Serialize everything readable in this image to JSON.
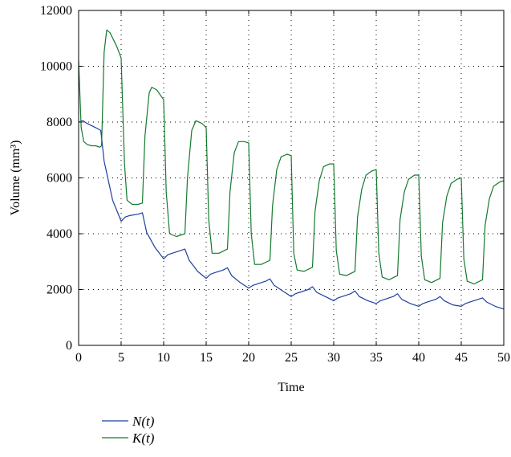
{
  "chart_data": {
    "type": "line",
    "title": "",
    "xlabel": "Time",
    "ylabel": "Volume (mm³)",
    "xlim": [
      0,
      50
    ],
    "ylim": [
      0,
      12000
    ],
    "xticks": [
      0,
      5,
      10,
      15,
      20,
      25,
      30,
      35,
      40,
      45,
      50
    ],
    "yticks": [
      0,
      2000,
      4000,
      6000,
      8000,
      10000,
      12000
    ],
    "grid": true,
    "legend_position": "bottom-left, below plot",
    "series": [
      {
        "name": "N(t)",
        "color": "#1f3fa0",
        "points": [
          [
            0,
            8000
          ],
          [
            0.5,
            8050
          ],
          [
            1,
            7950
          ],
          [
            2,
            7800
          ],
          [
            2.6,
            7700
          ],
          [
            3,
            6600
          ],
          [
            4,
            5200
          ],
          [
            5,
            4450
          ],
          [
            5.5,
            4600
          ],
          [
            6,
            4650
          ],
          [
            7,
            4700
          ],
          [
            7.5,
            4750
          ],
          [
            8,
            4050
          ],
          [
            9,
            3500
          ],
          [
            10,
            3100
          ],
          [
            10.5,
            3250
          ],
          [
            11,
            3300
          ],
          [
            12,
            3400
          ],
          [
            12.5,
            3450
          ],
          [
            13,
            3050
          ],
          [
            14,
            2650
          ],
          [
            15,
            2400
          ],
          [
            15.5,
            2550
          ],
          [
            16,
            2600
          ],
          [
            17,
            2700
          ],
          [
            17.5,
            2780
          ],
          [
            18,
            2500
          ],
          [
            19,
            2250
          ],
          [
            20,
            2050
          ],
          [
            20.5,
            2150
          ],
          [
            21,
            2200
          ],
          [
            22,
            2300
          ],
          [
            22.5,
            2380
          ],
          [
            23,
            2150
          ],
          [
            24,
            1950
          ],
          [
            25,
            1750
          ],
          [
            25.5,
            1850
          ],
          [
            26,
            1900
          ],
          [
            27,
            2000
          ],
          [
            27.5,
            2100
          ],
          [
            28,
            1900
          ],
          [
            29,
            1750
          ],
          [
            30,
            1600
          ],
          [
            30.5,
            1700
          ],
          [
            31,
            1750
          ],
          [
            32,
            1850
          ],
          [
            32.5,
            1950
          ],
          [
            33,
            1750
          ],
          [
            34,
            1600
          ],
          [
            35,
            1500
          ],
          [
            35.5,
            1600
          ],
          [
            36,
            1650
          ],
          [
            37,
            1750
          ],
          [
            37.5,
            1850
          ],
          [
            38,
            1650
          ],
          [
            39,
            1500
          ],
          [
            40,
            1400
          ],
          [
            40.5,
            1500
          ],
          [
            41,
            1550
          ],
          [
            42,
            1650
          ],
          [
            42.5,
            1750
          ],
          [
            43,
            1600
          ],
          [
            44,
            1450
          ],
          [
            45,
            1400
          ],
          [
            45.5,
            1500
          ],
          [
            46,
            1550
          ],
          [
            47,
            1650
          ],
          [
            47.5,
            1700
          ],
          [
            48,
            1550
          ],
          [
            49,
            1400
          ],
          [
            50,
            1300
          ]
        ]
      },
      {
        "name": "K(t)",
        "color": "#147a2e",
        "points": [
          [
            0,
            10200
          ],
          [
            0.3,
            7800
          ],
          [
            0.6,
            7300
          ],
          [
            1,
            7200
          ],
          [
            1.5,
            7150
          ],
          [
            2,
            7150
          ],
          [
            2.5,
            7100
          ],
          [
            2.7,
            7150
          ],
          [
            3.0,
            10500
          ],
          [
            3.3,
            11300
          ],
          [
            3.7,
            11200
          ],
          [
            4.5,
            10700
          ],
          [
            5.0,
            10300
          ],
          [
            5.4,
            6500
          ],
          [
            5.7,
            5200
          ],
          [
            6.3,
            5050
          ],
          [
            7.0,
            5050
          ],
          [
            7.5,
            5100
          ],
          [
            7.8,
            7500
          ],
          [
            8.3,
            9050
          ],
          [
            8.6,
            9250
          ],
          [
            9.2,
            9150
          ],
          [
            10.0,
            8800
          ],
          [
            10.3,
            5500
          ],
          [
            10.7,
            4000
          ],
          [
            11.5,
            3900
          ],
          [
            12.5,
            4000
          ],
          [
            12.8,
            6000
          ],
          [
            13.3,
            7700
          ],
          [
            13.8,
            8050
          ],
          [
            14.5,
            7950
          ],
          [
            15.0,
            7800
          ],
          [
            15.3,
            4500
          ],
          [
            15.7,
            3300
          ],
          [
            16.5,
            3300
          ],
          [
            17.5,
            3450
          ],
          [
            17.8,
            5500
          ],
          [
            18.3,
            6900
          ],
          [
            18.8,
            7300
          ],
          [
            19.5,
            7300
          ],
          [
            20.0,
            7250
          ],
          [
            20.3,
            4000
          ],
          [
            20.7,
            2900
          ],
          [
            21.5,
            2900
          ],
          [
            22.5,
            3050
          ],
          [
            22.8,
            5000
          ],
          [
            23.3,
            6300
          ],
          [
            23.8,
            6750
          ],
          [
            24.5,
            6850
          ],
          [
            25.0,
            6800
          ],
          [
            25.3,
            3300
          ],
          [
            25.7,
            2700
          ],
          [
            26.5,
            2650
          ],
          [
            27.5,
            2800
          ],
          [
            27.8,
            4800
          ],
          [
            28.3,
            5900
          ],
          [
            28.8,
            6400
          ],
          [
            29.5,
            6500
          ],
          [
            30.0,
            6500
          ],
          [
            30.3,
            3400
          ],
          [
            30.7,
            2550
          ],
          [
            31.5,
            2500
          ],
          [
            32.5,
            2650
          ],
          [
            32.8,
            4600
          ],
          [
            33.3,
            5600
          ],
          [
            33.8,
            6100
          ],
          [
            34.5,
            6250
          ],
          [
            35.0,
            6300
          ],
          [
            35.3,
            3300
          ],
          [
            35.7,
            2450
          ],
          [
            36.5,
            2350
          ],
          [
            37.5,
            2500
          ],
          [
            37.8,
            4500
          ],
          [
            38.3,
            5500
          ],
          [
            38.8,
            5950
          ],
          [
            39.5,
            6100
          ],
          [
            40.0,
            6100
          ],
          [
            40.3,
            3200
          ],
          [
            40.7,
            2350
          ],
          [
            41.5,
            2250
          ],
          [
            42.5,
            2400
          ],
          [
            42.8,
            4400
          ],
          [
            43.3,
            5350
          ],
          [
            43.8,
            5800
          ],
          [
            44.5,
            5950
          ],
          [
            45.0,
            6000
          ],
          [
            45.3,
            3100
          ],
          [
            45.7,
            2300
          ],
          [
            46.5,
            2200
          ],
          [
            47.5,
            2350
          ],
          [
            47.8,
            4300
          ],
          [
            48.3,
            5250
          ],
          [
            48.8,
            5700
          ],
          [
            49.5,
            5850
          ],
          [
            50.0,
            5900
          ]
        ]
      }
    ]
  }
}
